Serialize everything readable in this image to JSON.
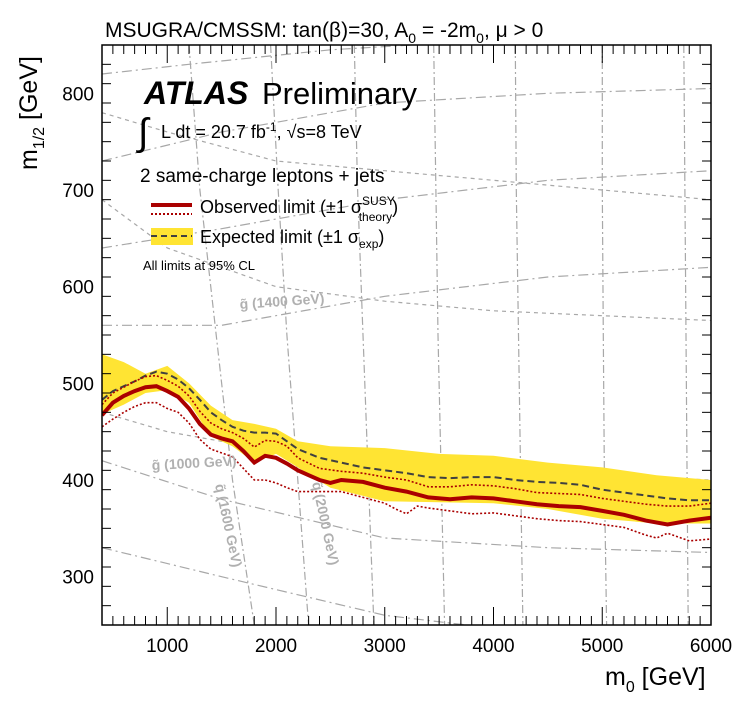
{
  "chart_data": {
    "type": "line",
    "title": "MSUGRA/CMSSM: tan(β)=30, A",
    "title_sub0": "0",
    "title_mid": " = -2m",
    "title_sub1": "0",
    "title_end": ", μ > 0",
    "xlabel_main": "m",
    "xlabel_sub": "0",
    "xlabel_unit": " [GeV]",
    "ylabel_main": "m",
    "ylabel_sub": "1/2",
    "ylabel_unit": " [GeV]",
    "xlim": [
      400,
      6000
    ],
    "ylim": [
      250,
      850
    ],
    "xticks": [
      1000,
      2000,
      3000,
      4000,
      5000,
      6000
    ],
    "yticks": [
      300,
      400,
      500,
      600,
      700,
      800
    ],
    "atlas_label": "ATLAS",
    "prelim_label": "Preliminary",
    "lumi_label": "L dt = 20.7 fb",
    "lumi_sup": "-1",
    "energy_label": ", √s=8 TeV",
    "integral_symbol": "∫",
    "channel_label": "2 same-charge leptons + jets",
    "legend": {
      "observed": "Observed limit (±1 σ",
      "observed_sup": "SUSY",
      "observed_sub": "theory",
      "observed_close": ")",
      "expected": "Expected limit (±1 σ",
      "expected_sub": "exp",
      "expected_close": ")",
      "cl_note": "All limits at 95% CL"
    },
    "contour_labels": [
      {
        "text": "g̃ (1400 GeV)"
      },
      {
        "text": "g̃ (1000 GeV)"
      },
      {
        "text": "q̃ (1600 GeV)"
      },
      {
        "text": "q̃ (2000 GeV)"
      }
    ],
    "series": [
      {
        "name": "expected_band_upper",
        "x": [
          400,
          600,
          800,
          1000,
          1200,
          1400,
          1600,
          1800,
          2000,
          2200,
          2500,
          3000,
          3500,
          4000,
          4500,
          5000,
          5500,
          6000
        ],
        "y": [
          530,
          522,
          510,
          518,
          500,
          477,
          462,
          458,
          453,
          440,
          435,
          433,
          427,
          425,
          418,
          413,
          405,
          400
        ]
      },
      {
        "name": "expected_band_lower",
        "x": [
          400,
          600,
          800,
          1000,
          1200,
          1400,
          1600,
          1800,
          2000,
          2200,
          2500,
          3000,
          3500,
          4000,
          4500,
          5000,
          5500,
          6000
        ],
        "y": [
          468,
          478,
          490,
          493,
          480,
          445,
          435,
          418,
          427,
          413,
          392,
          378,
          377,
          376,
          370,
          360,
          355,
          355
        ]
      },
      {
        "name": "expected",
        "x": [
          400,
          500,
          600,
          700,
          800,
          900,
          1000,
          1100,
          1200,
          1300,
          1400,
          1500,
          1600,
          1700,
          1800,
          1900,
          2000,
          2100,
          2200,
          2400,
          2600,
          2800,
          3000,
          3200,
          3400,
          3600,
          3800,
          4000,
          4200,
          4400,
          4600,
          4800,
          5000,
          5200,
          5400,
          5600,
          5800,
          6000
        ],
        "y": [
          483,
          492,
          497,
          502,
          508,
          512,
          510,
          504,
          495,
          483,
          470,
          462,
          455,
          451,
          449,
          449,
          448,
          440,
          432,
          423,
          418,
          413,
          410,
          407,
          403,
          402,
          403,
          403,
          400,
          398,
          397,
          395,
          390,
          387,
          384,
          381,
          379,
          379
        ]
      },
      {
        "name": "observed",
        "x": [
          400,
          500,
          600,
          700,
          800,
          900,
          1000,
          1100,
          1200,
          1300,
          1400,
          1500,
          1600,
          1700,
          1800,
          1900,
          2000,
          2100,
          2200,
          2300,
          2400,
          2500,
          2600,
          2800,
          3000,
          3200,
          3400,
          3600,
          3800,
          4000,
          4200,
          4400,
          4600,
          4800,
          5000,
          5200,
          5400,
          5600,
          5800,
          6000
        ],
        "y": [
          467,
          480,
          487,
          492,
          496,
          497,
          492,
          486,
          474,
          458,
          447,
          443,
          440,
          430,
          418,
          425,
          423,
          417,
          410,
          405,
          400,
          397,
          400,
          398,
          392,
          388,
          382,
          380,
          382,
          381,
          378,
          375,
          373,
          372,
          368,
          364,
          358,
          354,
          358,
          361
        ]
      },
      {
        "name": "observed_plus1sigma",
        "x": [
          400,
          500,
          600,
          700,
          800,
          900,
          1000,
          1100,
          1200,
          1300,
          1400,
          1500,
          1600,
          1700,
          1800,
          1900,
          2000,
          2100,
          2200,
          2400,
          2600,
          2800,
          3000,
          3200,
          3400,
          3600,
          3800,
          4000,
          4200,
          4400,
          4600,
          4800,
          5000,
          5200,
          5400,
          5600,
          5800,
          6000
        ],
        "y": [
          478,
          490,
          496,
          502,
          507,
          508,
          503,
          497,
          487,
          471,
          459,
          453,
          449,
          443,
          434,
          441,
          440,
          435,
          423,
          412,
          409,
          407,
          403,
          400,
          393,
          393,
          395,
          394,
          391,
          387,
          386,
          385,
          381,
          378,
          375,
          373,
          373,
          376
        ]
      },
      {
        "name": "observed_minus1sigma",
        "x": [
          400,
          500,
          600,
          700,
          800,
          900,
          1000,
          1100,
          1200,
          1300,
          1400,
          1500,
          1600,
          1700,
          1800,
          1900,
          2000,
          2100,
          2200,
          2400,
          2600,
          2800,
          3000,
          3100,
          3200,
          3300,
          3400,
          3600,
          3800,
          4000,
          4200,
          4400,
          4600,
          4800,
          5000,
          5200,
          5400,
          5500,
          5600,
          5800,
          6000
        ],
        "y": [
          455,
          463,
          470,
          476,
          480,
          480,
          474,
          470,
          459,
          442,
          432,
          428,
          424,
          412,
          400,
          400,
          397,
          392,
          388,
          388,
          388,
          382,
          376,
          370,
          365,
          373,
          371,
          368,
          365,
          366,
          363,
          360,
          358,
          357,
          354,
          351,
          343,
          340,
          345,
          337,
          339
        ]
      }
    ],
    "theory_curves": {
      "gluino_vertical": [
        {
          "x": [
            1200,
            1300,
            1450,
            1600,
            1800
          ],
          "y": [
            850,
            700,
            550,
            400,
            250
          ]
        },
        {
          "x": [
            1950,
            2020,
            2100,
            2200,
            2300
          ],
          "y": [
            850,
            700,
            550,
            400,
            250
          ]
        },
        {
          "x": [
            2720,
            2750,
            2800,
            2850,
            2900
          ],
          "y": [
            850,
            700,
            550,
            400,
            250
          ]
        },
        {
          "x": [
            3450,
            3470,
            3490,
            3520,
            3550
          ],
          "y": [
            850,
            700,
            550,
            400,
            250
          ]
        },
        {
          "x": [
            4200,
            4210,
            4230,
            4250,
            4270
          ],
          "y": [
            850,
            700,
            550,
            400,
            250
          ]
        },
        {
          "x": [
            5000,
            5000,
            5010,
            5020,
            5040
          ],
          "y": [
            850,
            700,
            550,
            400,
            250
          ]
        },
        {
          "x": [
            5750,
            5760,
            5770,
            5780,
            5790
          ],
          "y": [
            850,
            700,
            550,
            400,
            250
          ]
        }
      ],
      "squark_diagonal": [
        {
          "x": [
            400,
            1200,
            2500,
            4000,
            6000
          ],
          "y": [
            820,
            830,
            845,
            855,
            860
          ]
        },
        {
          "x": [
            400,
            1500,
            3000,
            4500,
            6000
          ],
          "y": [
            730,
            760,
            790,
            800,
            805
          ]
        },
        {
          "x": [
            400,
            1500,
            3000,
            4500,
            6000
          ],
          "y": [
            640,
            660,
            690,
            710,
            720
          ]
        },
        {
          "x": [
            400,
            1500,
            3000,
            4500,
            6000
          ],
          "y": [
            560,
            560,
            590,
            610,
            620
          ]
        },
        {
          "x": [
            400,
            1500,
            3000,
            4500,
            6000
          ],
          "y": [
            420,
            380,
            340,
            330,
            325
          ]
        },
        {
          "x": [
            400,
            1500,
            3000,
            4500,
            6000
          ],
          "y": [
            330,
            300,
            260,
            240,
            230
          ]
        }
      ],
      "dotted_gluino": [
        {
          "x": [
            400,
            1000,
            2000,
            3000,
            4000,
            5000,
            6000
          ],
          "y": [
            780,
            760,
            730,
            720,
            710,
            700,
            690
          ]
        },
        {
          "x": [
            400,
            1000,
            2000,
            3000,
            4000,
            5000,
            6000
          ],
          "y": [
            690,
            640,
            600,
            585,
            575,
            570,
            565
          ]
        },
        {
          "x": [
            400,
            1000,
            2000,
            3000,
            4000,
            5000,
            6000
          ],
          "y": [
            470,
            450,
            430,
            420,
            410,
            405,
            400
          ]
        }
      ]
    },
    "colors": {
      "band": "#ffe433",
      "observed": "#aa0000",
      "expected": "#404040",
      "theory": "#a8a8a8",
      "label_grey": "#b0b0b0"
    }
  }
}
